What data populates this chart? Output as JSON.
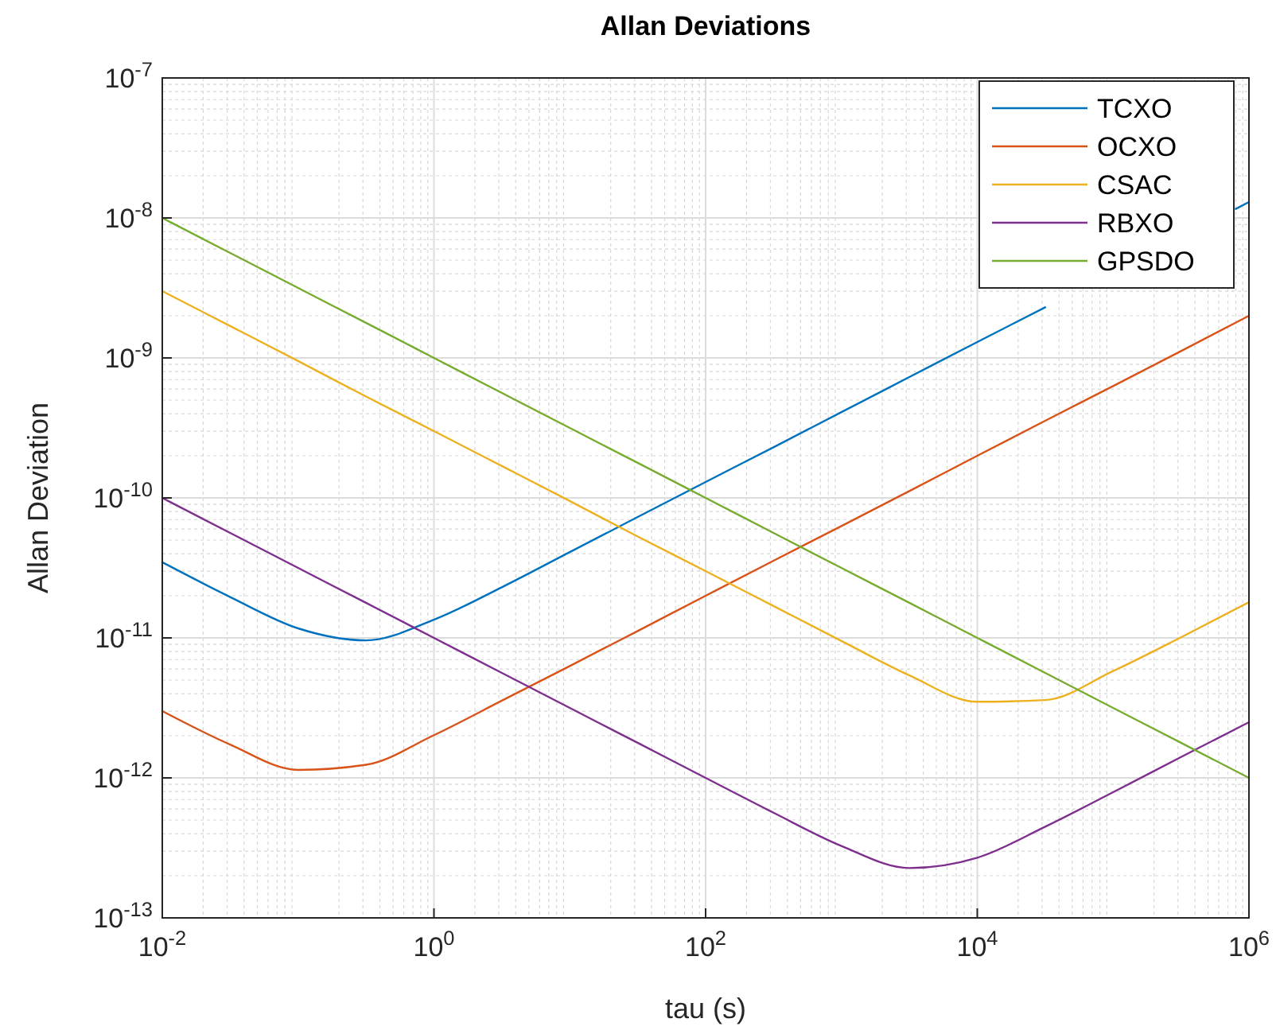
{
  "chart_data": {
    "type": "line",
    "title": "Allan Deviations",
    "xlabel": "tau (s)",
    "ylabel": "Allan Deviation",
    "log": "xy",
    "grid": true,
    "legend": "top right",
    "line_style": "solid",
    "marker": "none",
    "x": [
      0.01,
      0.0316,
      0.1,
      0.316,
      1,
      3.16,
      10,
      31.6,
      100,
      316,
      1000,
      3162,
      10000,
      31623,
      100000,
      316228,
      1000000
    ],
    "xlim": [
      0.01,
      1000000
    ],
    "ylim": [
      1e-13,
      1e-07
    ],
    "xticks": [
      {
        "value": 0.01,
        "label": "10$^{-2}$"
      },
      {
        "value": 1,
        "label": "10$^{0}$"
      },
      {
        "value": 100,
        "label": "10$^{2}$"
      },
      {
        "value": 10000,
        "label": "10$^{4}$"
      },
      {
        "value": 1000000,
        "label": "10$^{6}$"
      }
    ],
    "yticks": [
      {
        "value": 1e-13,
        "label": "10$^{-13}$"
      },
      {
        "value": 1e-12,
        "label": "10$^{-12}$"
      },
      {
        "value": 1e-11,
        "label": "10$^{-11}$"
      },
      {
        "value": 1e-10,
        "label": "10$^{-10}$"
      },
      {
        "value": 1e-09,
        "label": "10$^{-9}$"
      },
      {
        "value": 1e-08,
        "label": "10$^{-8}$"
      },
      {
        "value": 1e-07,
        "label": "10$^{-7}$"
      }
    ],
    "series": [
      {
        "name": "TCXO",
        "color": "#0072bd",
        "x": [
          0.01,
          0.0316,
          0.1,
          0.316,
          1,
          3.16,
          10,
          31.6,
          100,
          316,
          1000,
          3162,
          10000,
          31623,
          100000,
          800000,
          1000000
        ],
        "values": [
          3.47e-11,
          1.96e-11,
          1.17e-11,
          9.6e-12,
          1.35e-11,
          2.3e-11,
          4.1e-11,
          7.3e-11,
          1.3e-10,
          2.3e-10,
          4.1e-10,
          7.3e-10,
          1.3e-09,
          2.3e-09,
          null,
          1.16e-08,
          1.3e-08
        ]
      },
      {
        "name": "OCXO",
        "color": "#d95319",
        "values": [
          3e-12,
          1.73e-12,
          1.14e-12,
          1.24e-12,
          2.02e-12,
          3.56e-12,
          6.3e-12,
          1.12e-11,
          2e-11,
          3.56e-11,
          6.3e-11,
          1.12e-10,
          2e-10,
          3.56e-10,
          6.3e-10,
          1.12e-09,
          2e-09
        ]
      },
      {
        "name": "CSAC",
        "color": "#edb120",
        "values": [
          3e-09,
          1.69e-09,
          9.5e-10,
          5.3e-10,
          3e-10,
          1.69e-10,
          9.5e-11,
          5.3e-11,
          3e-11,
          1.69e-11,
          9.5e-12,
          5.4e-12,
          3.5e-12,
          3.6e-12,
          5.8e-12,
          1.01e-11,
          1.8e-11
        ]
      },
      {
        "name": "RBXO",
        "color": "#7e2f8e",
        "values": [
          1e-10,
          5.62e-11,
          3.16e-11,
          1.78e-11,
          1e-11,
          5.62e-12,
          3.16e-12,
          1.78e-12,
          1e-12,
          5.64e-13,
          3.26e-13,
          2.27e-13,
          2.69e-13,
          4.48e-13,
          7.9e-13,
          1.41e-12,
          2.5e-12
        ]
      },
      {
        "name": "GPSDO",
        "color": "#77ac30",
        "values": [
          1e-08,
          5.62e-09,
          3.16e-09,
          1.78e-09,
          1e-09,
          5.62e-10,
          3.16e-10,
          1.78e-10,
          1e-10,
          5.62e-11,
          3.16e-11,
          1.78e-11,
          1e-11,
          5.62e-12,
          3.16e-12,
          1.78e-12,
          1e-12
        ]
      }
    ]
  }
}
